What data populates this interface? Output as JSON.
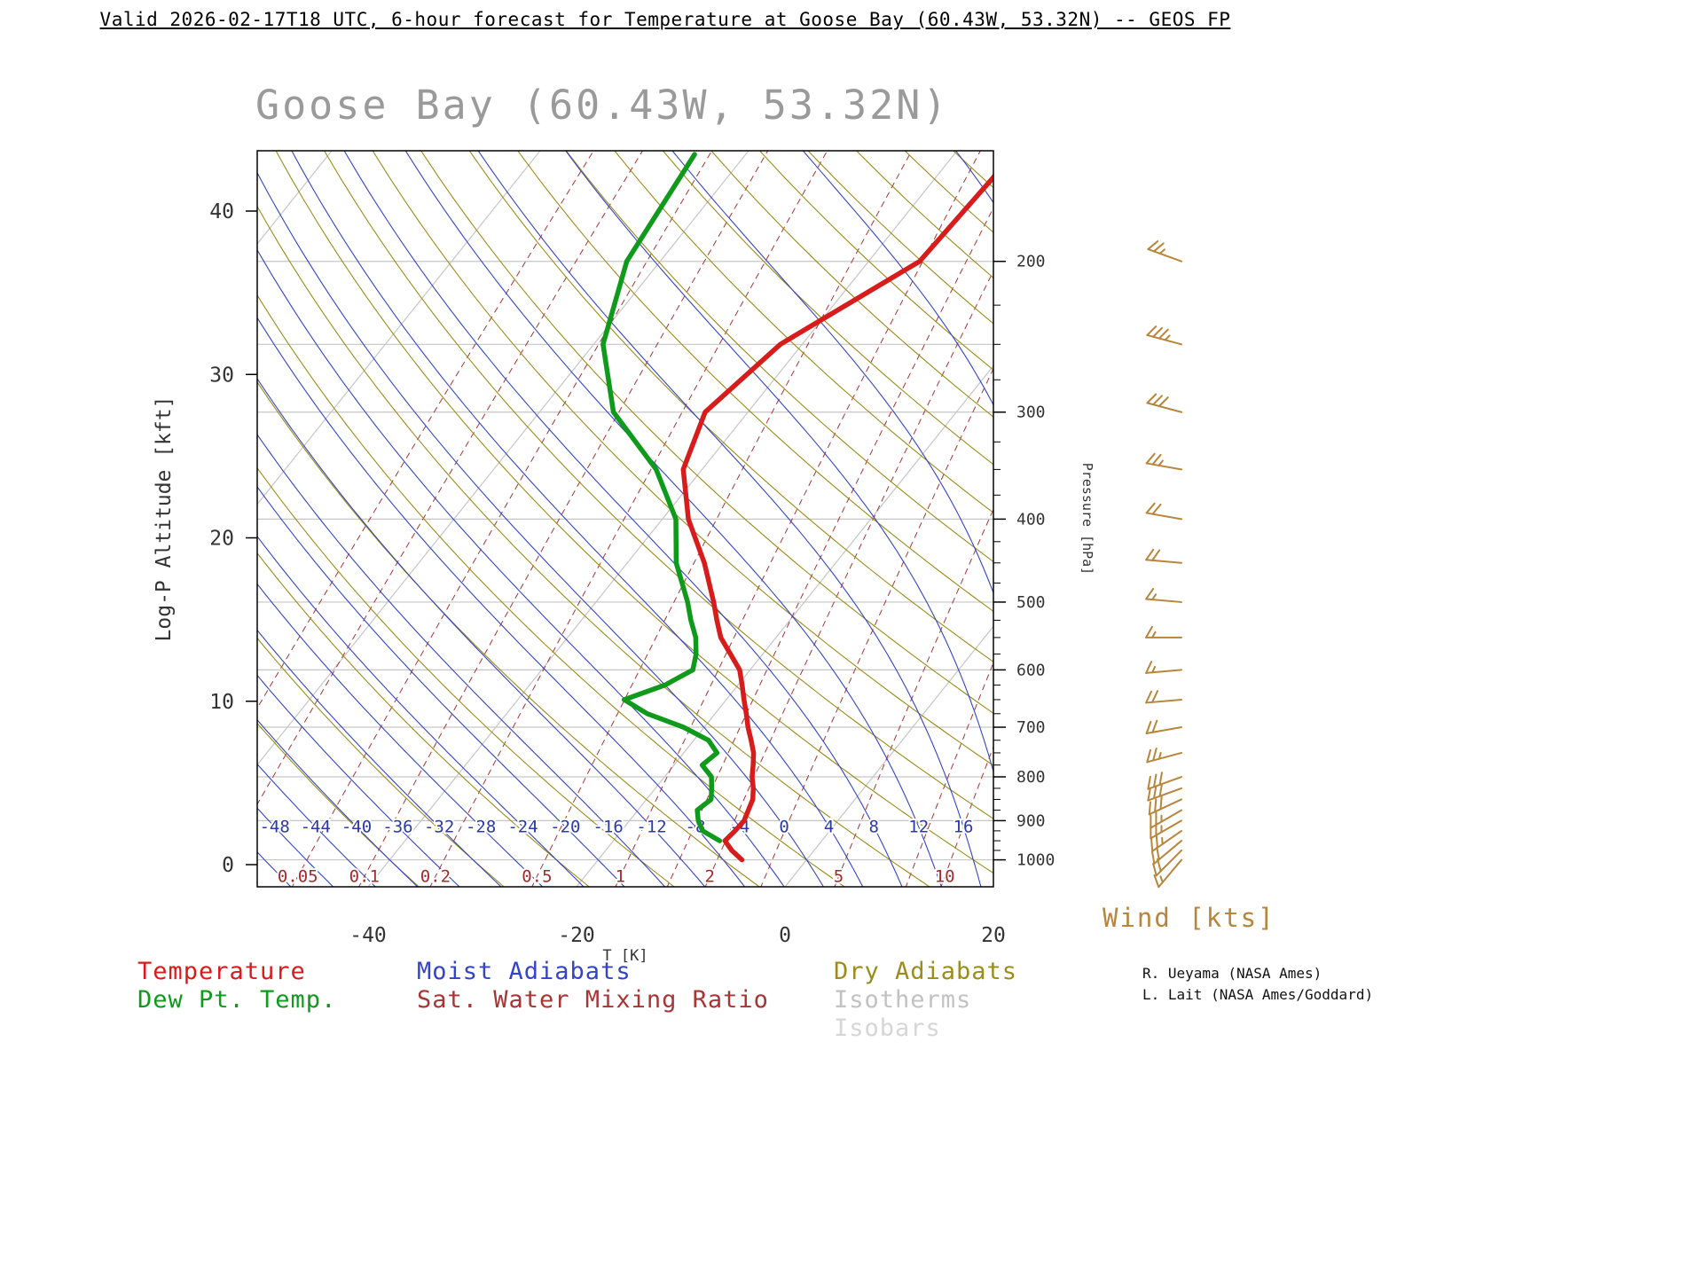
{
  "header": {
    "title": "Valid 2026-02-17T18 UTC, 6-hour forecast for Temperature at Goose Bay (60.43W, 53.32N) -- GEOS FP"
  },
  "chart_title": "Goose Bay (60.43W, 53.32N)",
  "wind_title": "Wind [kts]",
  "credits": [
    "R. Ueyama (NASA Ames)",
    "L. Lait (NASA Ames/Goddard)"
  ],
  "axes": {
    "y_left": {
      "label": "Log-P Altitude [kft]",
      "ticks": [
        0,
        10,
        20,
        30,
        40
      ]
    },
    "y_right": {
      "label": "Pressure [hPa]",
      "ticks": [
        200,
        300,
        400,
        500,
        600,
        700,
        800,
        900,
        1000
      ]
    },
    "x_bottom": {
      "label": "T [K]",
      "ticks": [
        -40,
        -20,
        0,
        20
      ]
    },
    "moist_adiabat_labels": [
      -48,
      -44,
      -40,
      -36,
      -32,
      -28,
      -24,
      -20,
      -16,
      -12,
      -8,
      -4,
      0,
      4,
      8,
      12,
      16
    ],
    "mixing_ratio_labels": [
      0.05,
      0.1,
      0.2,
      0.5,
      1,
      2,
      5,
      10
    ]
  },
  "legend": {
    "items": [
      {
        "label": "Temperature"
      },
      {
        "label": "Dew Pt. Temp."
      },
      {
        "label": "Moist Adiabats"
      },
      {
        "label": "Sat. Water Mixing Ratio"
      },
      {
        "label": "Dry Adiabats"
      },
      {
        "label": "Isotherms"
      },
      {
        "label": "Isobars"
      }
    ]
  },
  "colors": {
    "temperature": "#d81b1b",
    "dewpoint": "#0f9a1c",
    "moist_adiabat": "#3344c8",
    "mixing_ratio": "#a83434",
    "mixing_ratio_label": "#a02c2c",
    "dry_adiabat": "#9c8c1a",
    "isotherm": "#c6c6c6",
    "isobar": "#c6c6c6",
    "isotherm_legend": "#c2c2c2",
    "isobar_legend": "#d6d6d6",
    "inline_label_blue": "#2c3aa8",
    "wind": "#b8863b",
    "title_gray": "#9a9a9a",
    "axis_text": "#333333"
  },
  "chart_data": {
    "type": "skew-t-log-p sounding",
    "station": {
      "name": "Goose Bay",
      "lon": "60.43W",
      "lat": "53.32N"
    },
    "valid_time": "2026-02-17T18 UTC",
    "forecast": "6-hour forecast for Temperature",
    "model": "GEOS FP",
    "levels": [
      {
        "p": 1000,
        "t": -6.2,
        "td": null
      },
      {
        "p": 975,
        "t": -7.9,
        "td": null
      },
      {
        "p": 950,
        "t": -9.3,
        "td": -9.8
      },
      {
        "p": 925,
        "t": -9.1,
        "td": -12.2
      },
      {
        "p": 900,
        "t": -9.0,
        "td": -13.4
      },
      {
        "p": 875,
        "t": -9.4,
        "td": -14.3
      },
      {
        "p": 850,
        "t": -9.8,
        "td": -13.8
      },
      {
        "p": 825,
        "t": -10.6,
        "td": -14.6
      },
      {
        "p": 800,
        "t": -11.6,
        "td": -15.5
      },
      {
        "p": 775,
        "t": -12.4,
        "td": -17.3
      },
      {
        "p": 750,
        "t": -13.3,
        "td": -16.8
      },
      {
        "p": 725,
        "t": -14.5,
        "td": -18.6
      },
      {
        "p": 700,
        "t": -15.8,
        "td": -22.0
      },
      {
        "p": 675,
        "t": -17.0,
        "td": -26.5
      },
      {
        "p": 650,
        "t": -18.3,
        "td": -29.8
      },
      {
        "p": 625,
        "t": -19.6,
        "td": -27.0
      },
      {
        "p": 600,
        "t": -21.0,
        "td": -25.5
      },
      {
        "p": 575,
        "t": -23.1,
        "td": -26.4
      },
      {
        "p": 550,
        "t": -25.3,
        "td": -27.7
      },
      {
        "p": 525,
        "t": -27.0,
        "td": -29.5
      },
      {
        "p": 500,
        "t": -28.7,
        "td": -31.2
      },
      {
        "p": 450,
        "t": -32.6,
        "td": -35.3
      },
      {
        "p": 400,
        "t": -37.5,
        "td": -38.7
      },
      {
        "p": 350,
        "t": -41.8,
        "td": -44.4
      },
      {
        "p": 300,
        "t": -44.1,
        "td": -52.9
      },
      {
        "p": 250,
        "t": -42.1,
        "td": -59.1
      },
      {
        "p": 200,
        "t": -35.1,
        "td": -63.2
      },
      {
        "p": 150,
        "t": -34.3,
        "td": -64.9
      }
    ],
    "wind": [
      {
        "p": 1000,
        "kt": 15,
        "dir": 220
      },
      {
        "p": 975,
        "kt": 20,
        "dir": 225
      },
      {
        "p": 950,
        "kt": 20,
        "dir": 230
      },
      {
        "p": 925,
        "kt": 25,
        "dir": 235
      },
      {
        "p": 900,
        "kt": 25,
        "dir": 240
      },
      {
        "p": 875,
        "kt": 25,
        "dir": 240
      },
      {
        "p": 850,
        "kt": 30,
        "dir": 245
      },
      {
        "p": 825,
        "kt": 30,
        "dir": 250
      },
      {
        "p": 800,
        "kt": 30,
        "dir": 250
      },
      {
        "p": 750,
        "kt": 25,
        "dir": 255
      },
      {
        "p": 700,
        "kt": 20,
        "dir": 260
      },
      {
        "p": 650,
        "kt": 20,
        "dir": 265
      },
      {
        "p": 600,
        "kt": 15,
        "dir": 265
      },
      {
        "p": 550,
        "kt": 15,
        "dir": 270
      },
      {
        "p": 500,
        "kt": 15,
        "dir": 275
      },
      {
        "p": 450,
        "kt": 20,
        "dir": 275
      },
      {
        "p": 400,
        "kt": 20,
        "dir": 280
      },
      {
        "p": 350,
        "kt": 25,
        "dir": 280
      },
      {
        "p": 300,
        "kt": 30,
        "dir": 285
      },
      {
        "p": 250,
        "kt": 35,
        "dir": 285
      },
      {
        "p": 200,
        "kt": 25,
        "dir": 290
      }
    ],
    "grid": {
      "isotherm_step_C": 20,
      "isotherm_range_C": [
        -120,
        40
      ],
      "isobars_hPa": [
        1000,
        900,
        800,
        700,
        600,
        500,
        400,
        300,
        250,
        200
      ],
      "dry_adiabat_step_C": 8,
      "dry_adiabat_range_C": [
        -40,
        136
      ],
      "moist_adiabat_step_C": 4,
      "moist_adiabat_range_C": [
        -60,
        40
      ],
      "mixing_ratio_lines_gkg": [
        0.01,
        0.02,
        0.05,
        0.1,
        0.2,
        0.5,
        1,
        1.5,
        2,
        3,
        5,
        8,
        10,
        15,
        20
      ]
    }
  }
}
